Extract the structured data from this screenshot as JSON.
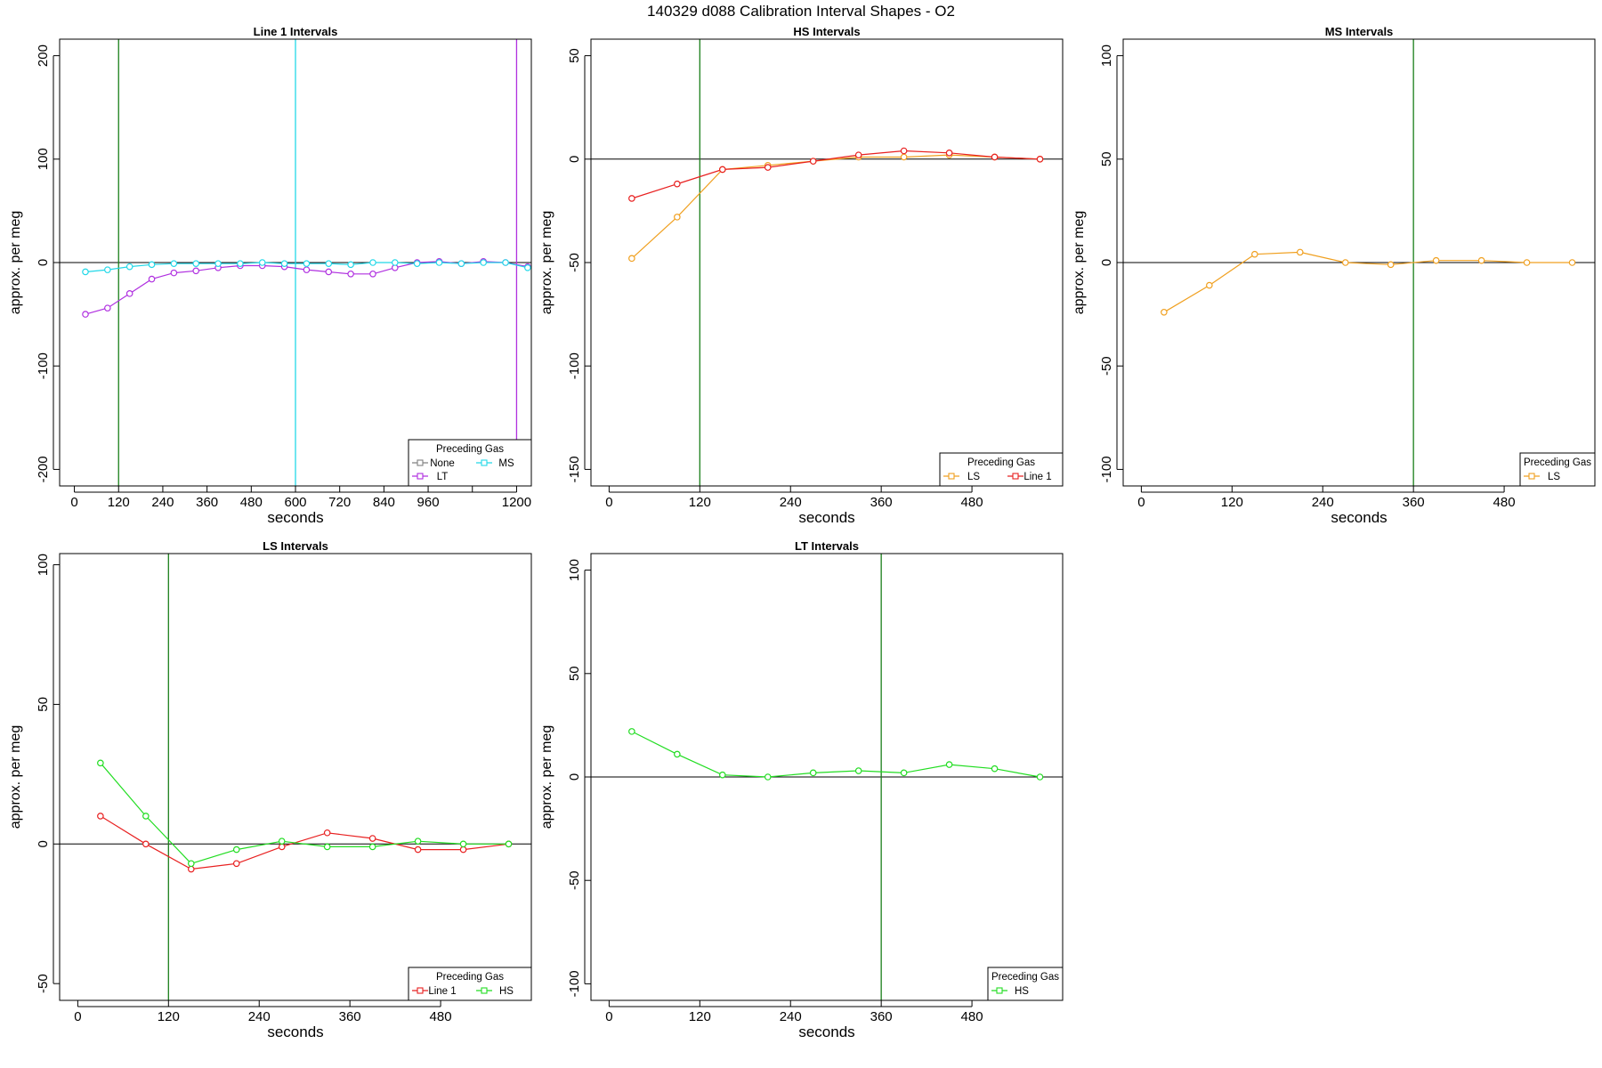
{
  "figure_title": "140329   d088   Calibration Interval Shapes - O2",
  "colors": {
    "None": "#808080",
    "LT": "#b030e0",
    "MS": "#22d8e8",
    "HS": "#22dd22",
    "LS": "#f0a020",
    "Line 1": "#e82020",
    "vertical_marker": "#1a7f1a",
    "zero_line": "#000000"
  },
  "chart_data": [
    {
      "type": "line",
      "title": "Line 1 Intervals",
      "xlabel": "seconds",
      "ylabel": "approx. per meg",
      "xlim": [
        -40,
        1240
      ],
      "ylim": [
        -216,
        216
      ],
      "xticks": [
        0,
        120,
        240,
        360,
        480,
        600,
        720,
        840,
        960,
        1080,
        1200
      ],
      "xtick_labels": [
        "0",
        "120",
        "240",
        "360",
        "480",
        "600",
        "720",
        "840",
        "960",
        "",
        "1200"
      ],
      "yticks": [
        -200,
        -100,
        0,
        100,
        200
      ],
      "grid": false,
      "vlines": [
        {
          "x": 120,
          "color": "vertical_marker"
        },
        {
          "x": 600,
          "color": "MS"
        },
        {
          "x": 1200,
          "color": "LT"
        }
      ],
      "legend": {
        "title": "Preceding Gas",
        "position": "bottom-right",
        "columns": 2,
        "entries": [
          "None",
          "MS",
          "LT"
        ]
      },
      "series": [
        {
          "name": "LT",
          "color": "LT",
          "x": [
            30,
            90,
            150,
            210,
            270,
            330,
            390,
            450,
            510,
            570,
            630,
            690,
            750,
            810,
            870,
            930,
            990,
            1050,
            1110,
            1170,
            1230
          ],
          "y": [
            -50,
            -44,
            -30,
            -16,
            -10,
            -8,
            -5,
            -3,
            -3,
            -4,
            -7,
            -9,
            -11,
            -11,
            -5,
            0,
            1,
            -1,
            1,
            0,
            -4
          ]
        },
        {
          "name": "MS",
          "color": "MS",
          "x": [
            30,
            90,
            150,
            210,
            270,
            330,
            390,
            450,
            510,
            570,
            630,
            690,
            750,
            810,
            870,
            930,
            990,
            1050,
            1110,
            1170,
            1230
          ],
          "y": [
            -9,
            -7,
            -4,
            -2,
            -1,
            -1,
            -1,
            -1,
            0,
            -1,
            -1,
            -1,
            -2,
            0,
            0,
            -1,
            0,
            -1,
            0,
            0,
            -5
          ]
        }
      ]
    },
    {
      "type": "line",
      "title": "HS Intervals",
      "xlabel": "seconds",
      "ylabel": "approx. per meg",
      "xlim": [
        -24,
        600
      ],
      "ylim": [
        -158,
        58
      ],
      "xticks": [
        0,
        120,
        240,
        360,
        480
      ],
      "xtick_labels": [
        "0",
        "120",
        "240",
        "360",
        "480"
      ],
      "yticks": [
        -150,
        -100,
        -50,
        0,
        50
      ],
      "grid": false,
      "vlines": [
        {
          "x": 120,
          "color": "vertical_marker"
        }
      ],
      "legend": {
        "title": "Preceding Gas",
        "position": "bottom-right",
        "columns": 2,
        "entries": [
          "LS",
          "Line 1"
        ]
      },
      "series": [
        {
          "name": "LS",
          "color": "LS",
          "x": [
            30,
            90,
            150,
            210,
            270,
            330,
            390,
            450,
            510,
            570
          ],
          "y": [
            -48,
            -28,
            -5,
            -3,
            -1,
            1,
            1,
            2,
            1,
            0
          ]
        },
        {
          "name": "Line 1",
          "color": "Line 1",
          "x": [
            30,
            90,
            150,
            210,
            270,
            330,
            390,
            450,
            510,
            570
          ],
          "y": [
            -19,
            -12,
            -5,
            -4,
            -1,
            2,
            4,
            3,
            1,
            0
          ]
        }
      ]
    },
    {
      "type": "line",
      "title": "MS Intervals",
      "xlabel": "seconds",
      "ylabel": "approx. per meg",
      "xlim": [
        -24,
        600
      ],
      "ylim": [
        -108,
        108
      ],
      "xticks": [
        0,
        120,
        240,
        360,
        480
      ],
      "xtick_labels": [
        "0",
        "120",
        "240",
        "360",
        "480"
      ],
      "yticks": [
        -100,
        -50,
        0,
        50,
        100
      ],
      "grid": false,
      "vlines": [
        {
          "x": 360,
          "color": "vertical_marker"
        }
      ],
      "legend": {
        "title": "Preceding Gas",
        "position": "bottom-right",
        "columns": 1,
        "entries": [
          "LS"
        ]
      },
      "series": [
        {
          "name": "LS",
          "color": "LS",
          "x": [
            30,
            90,
            150,
            210,
            270,
            330,
            390,
            450,
            510,
            570
          ],
          "y": [
            -24,
            -11,
            4,
            5,
            0,
            -1,
            1,
            1,
            0,
            0
          ]
        }
      ]
    },
    {
      "type": "line",
      "title": "LS Intervals",
      "xlabel": "seconds",
      "ylabel": "approx. per meg",
      "xlim": [
        -24,
        600
      ],
      "ylim": [
        -56,
        104
      ],
      "xticks": [
        0,
        120,
        240,
        360,
        480
      ],
      "xtick_labels": [
        "0",
        "120",
        "240",
        "360",
        "480"
      ],
      "yticks": [
        -50,
        0,
        50,
        100
      ],
      "grid": false,
      "vlines": [
        {
          "x": 120,
          "color": "vertical_marker"
        }
      ],
      "legend": {
        "title": "Preceding Gas",
        "position": "bottom-right",
        "columns": 2,
        "entries": [
          "Line 1",
          "HS"
        ]
      },
      "series": [
        {
          "name": "Line 1",
          "color": "Line 1",
          "x": [
            30,
            90,
            150,
            210,
            270,
            330,
            390,
            450,
            510,
            570
          ],
          "y": [
            10,
            0,
            -9,
            -7,
            -1,
            4,
            2,
            -2,
            -2,
            0
          ]
        },
        {
          "name": "HS",
          "color": "HS",
          "x": [
            30,
            90,
            150,
            210,
            270,
            330,
            390,
            450,
            510,
            570
          ],
          "y": [
            29,
            10,
            -7,
            -2,
            1,
            -1,
            -1,
            1,
            0,
            0
          ]
        }
      ]
    },
    {
      "type": "line",
      "title": "LT Intervals",
      "xlabel": "seconds",
      "ylabel": "approx. per meg",
      "xlim": [
        -24,
        600
      ],
      "ylim": [
        -108,
        108
      ],
      "xticks": [
        0,
        120,
        240,
        360,
        480
      ],
      "xtick_labels": [
        "0",
        "120",
        "240",
        "360",
        "480"
      ],
      "yticks": [
        -100,
        -50,
        0,
        50,
        100
      ],
      "grid": false,
      "vlines": [
        {
          "x": 360,
          "color": "vertical_marker"
        }
      ],
      "legend": {
        "title": "Preceding Gas",
        "position": "bottom-right",
        "columns": 1,
        "entries": [
          "HS"
        ]
      },
      "series": [
        {
          "name": "HS",
          "color": "HS",
          "x": [
            30,
            90,
            150,
            210,
            270,
            330,
            390,
            450,
            510,
            570
          ],
          "y": [
            22,
            11,
            1,
            0,
            2,
            3,
            2,
            6,
            4,
            0
          ]
        }
      ]
    }
  ]
}
